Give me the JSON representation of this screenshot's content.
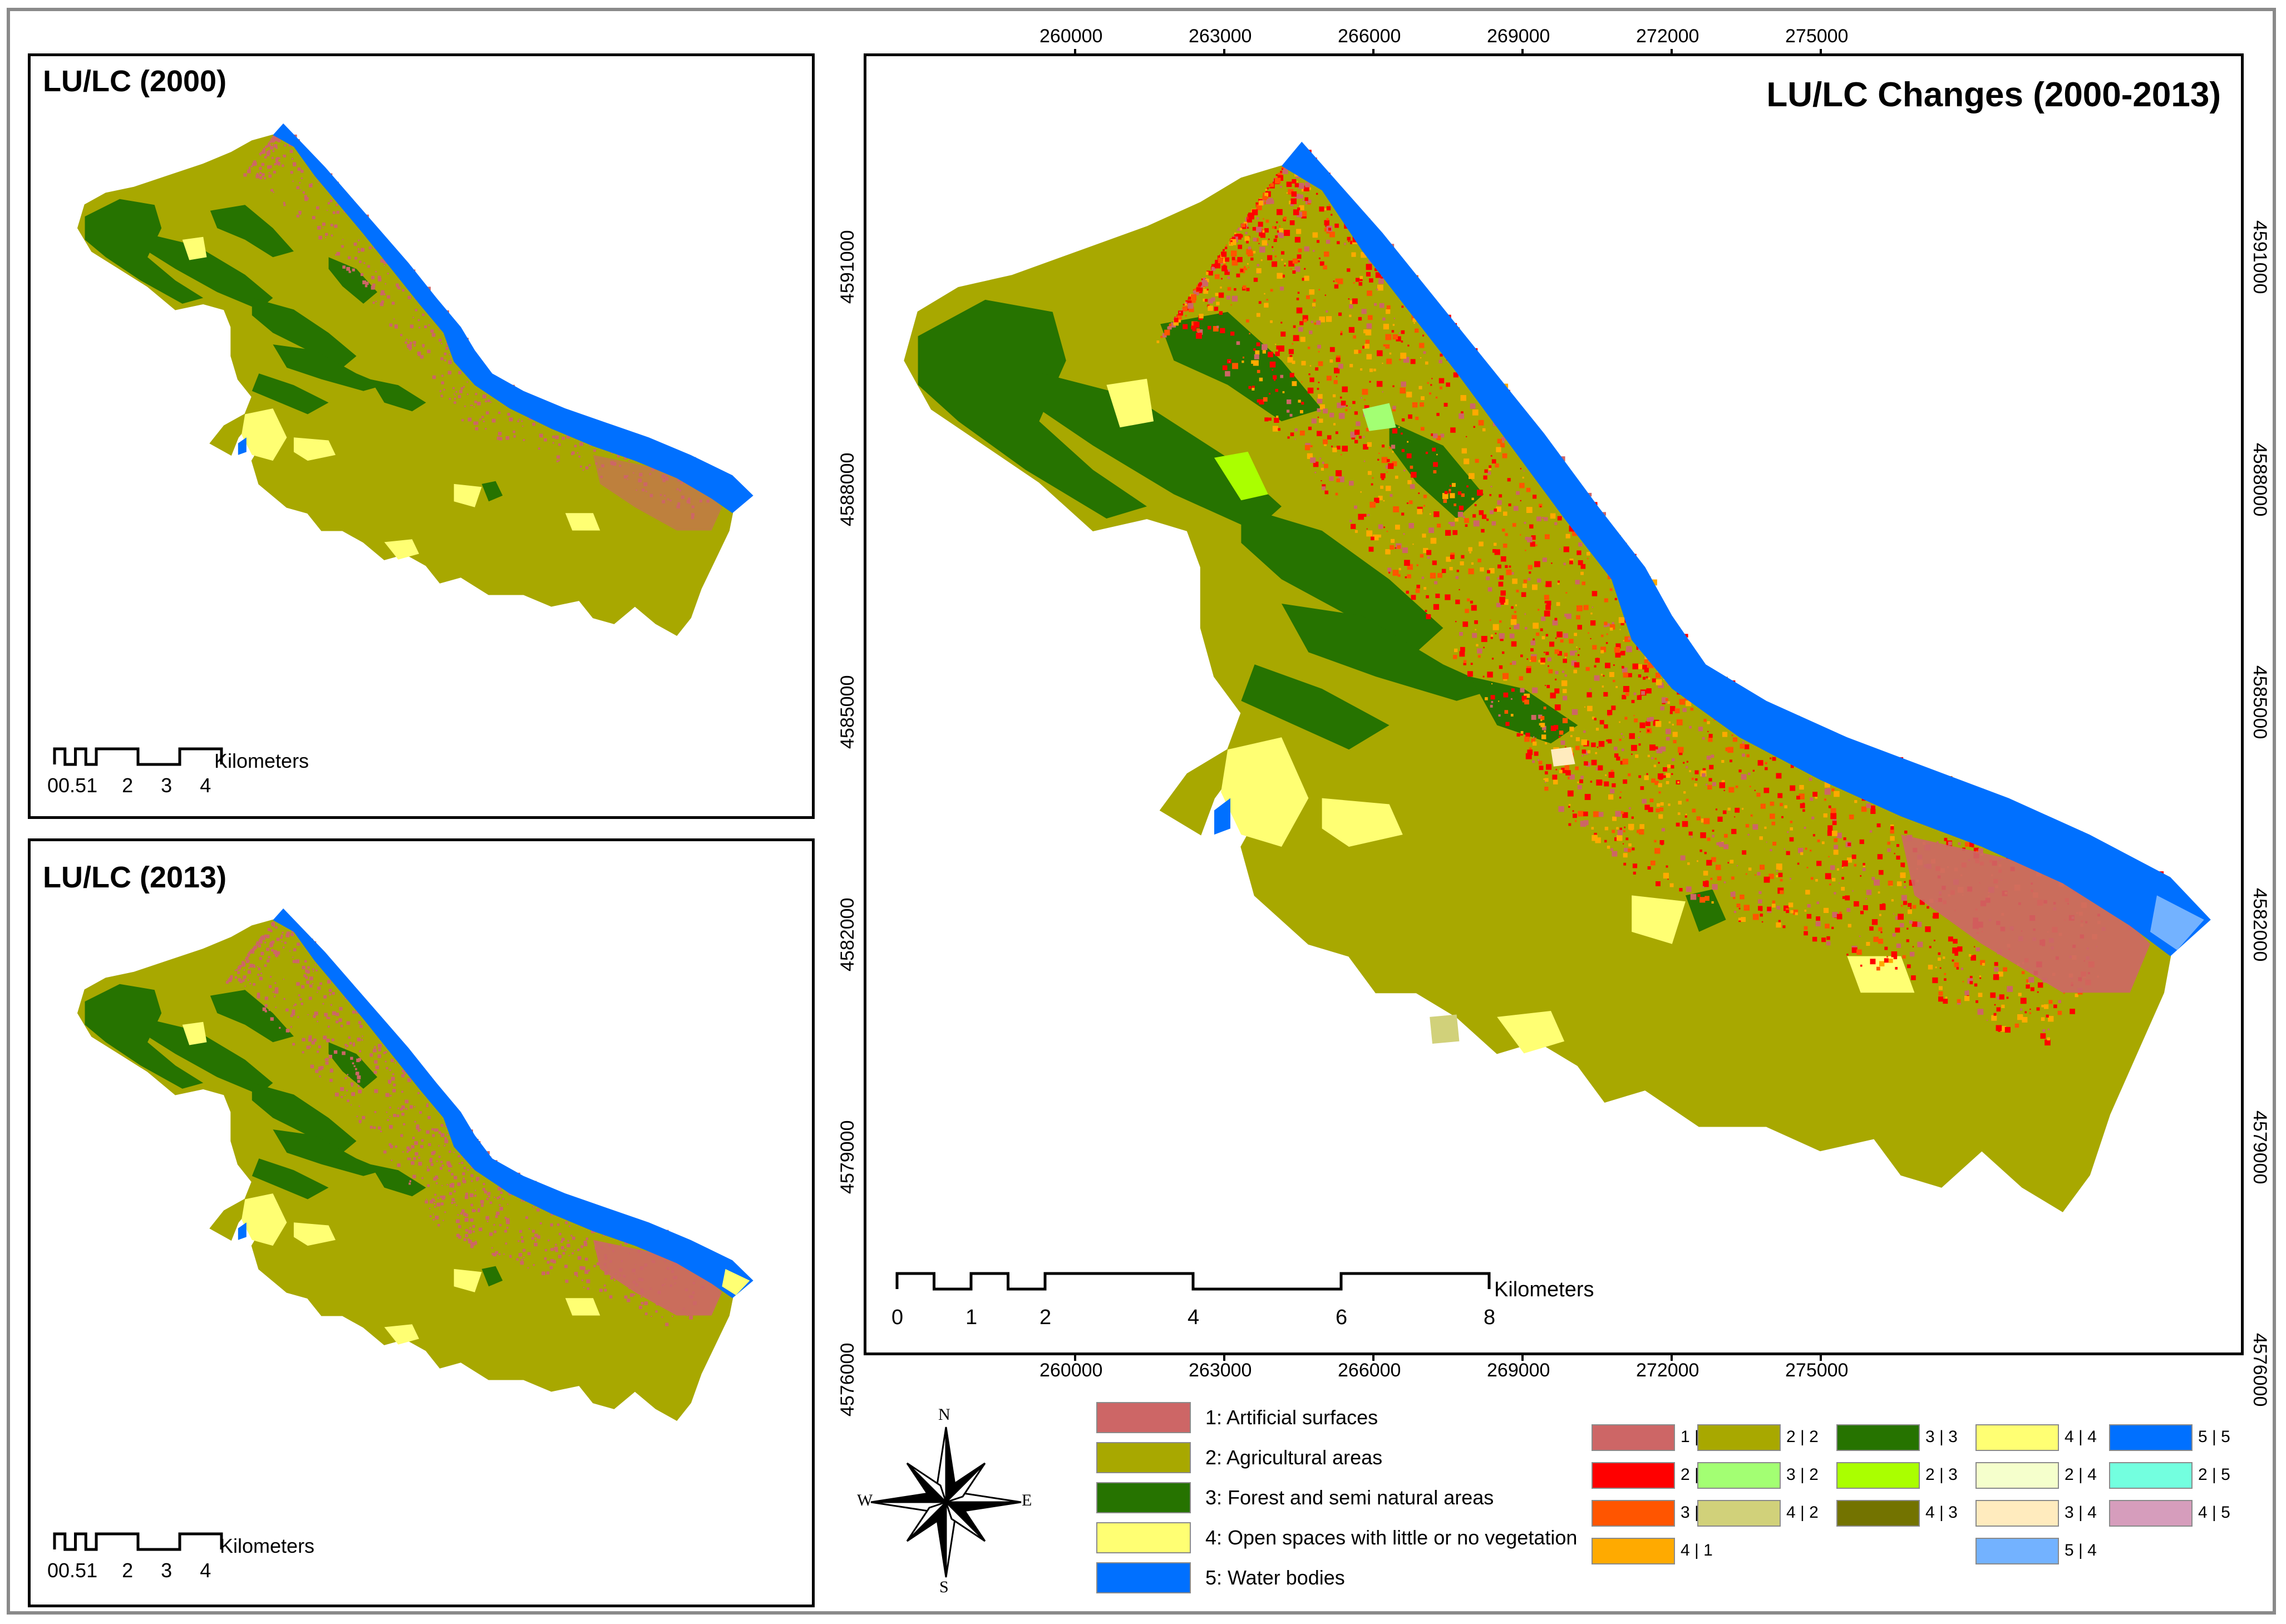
{
  "maps": {
    "map2000": {
      "title": "LU/LC (2000)"
    },
    "map2013": {
      "title": "LU/LC (2013)"
    },
    "changes": {
      "title": "LU/LC Changes (2000-2013)"
    }
  },
  "scalebar_small": {
    "unit": "Kilometers",
    "ticks": [
      "0",
      "0.5",
      "1",
      "2",
      "3",
      "4"
    ],
    "tick_text": "00.51",
    "tick_rest": [
      "2",
      "3",
      "4"
    ]
  },
  "scalebar_large": {
    "unit": "Kilometers",
    "ticks": [
      "0",
      "1",
      "2",
      "4",
      "6",
      "8"
    ]
  },
  "grid": {
    "eastings": [
      "260000",
      "263000",
      "266000",
      "269000",
      "272000",
      "275000"
    ],
    "northings": [
      "4591000",
      "4588000",
      "4585000",
      "4582000",
      "4579000",
      "4576000"
    ]
  },
  "compass": {
    "n": "N",
    "s": "S",
    "e": "E",
    "w": "W"
  },
  "classes": [
    {
      "id": 1,
      "label": "1: Artificial surfaces",
      "color": "#cd6666"
    },
    {
      "id": 2,
      "label": "2: Agricultural areas",
      "color": "#a8a800"
    },
    {
      "id": 3,
      "label": "3: Forest and semi natural areas",
      "color": "#267300"
    },
    {
      "id": 4,
      "label": "4: Open spaces with little or no vegetation",
      "color": "#ffff73"
    },
    {
      "id": 5,
      "label": "5: Water bodies",
      "color": "#0070ff"
    }
  ],
  "changes_legend": [
    [
      {
        "label": "1 | 1",
        "color": "#cd6666"
      },
      {
        "label": "2 | 1",
        "color": "#ff0000"
      },
      {
        "label": "3 | 1",
        "color": "#ff5500"
      },
      {
        "label": "4 | 1",
        "color": "#ffaa00"
      }
    ],
    [
      {
        "label": "2 | 2",
        "color": "#a8a800"
      },
      {
        "label": "3 | 2",
        "color": "#a3ff73"
      },
      {
        "label": "4 | 2",
        "color": "#d1d17a"
      }
    ],
    [
      {
        "label": "3 | 3",
        "color": "#267300"
      },
      {
        "label": "2 | 3",
        "color": "#aaff00"
      },
      {
        "label": "4 | 3",
        "color": "#737300"
      }
    ],
    [
      {
        "label": "4 | 4",
        "color": "#ffff73"
      },
      {
        "label": "2 | 4",
        "color": "#f5ffcc"
      },
      {
        "label": "3 | 4",
        "color": "#ffebbe"
      },
      {
        "label": "5 | 4",
        "color": "#73b2ff"
      }
    ],
    [
      {
        "label": "5 | 5",
        "color": "#0070ff"
      },
      {
        "label": "2 | 5",
        "color": "#73ffdf"
      },
      {
        "label": "4 | 5",
        "color": "#d69dbc"
      }
    ]
  ]
}
